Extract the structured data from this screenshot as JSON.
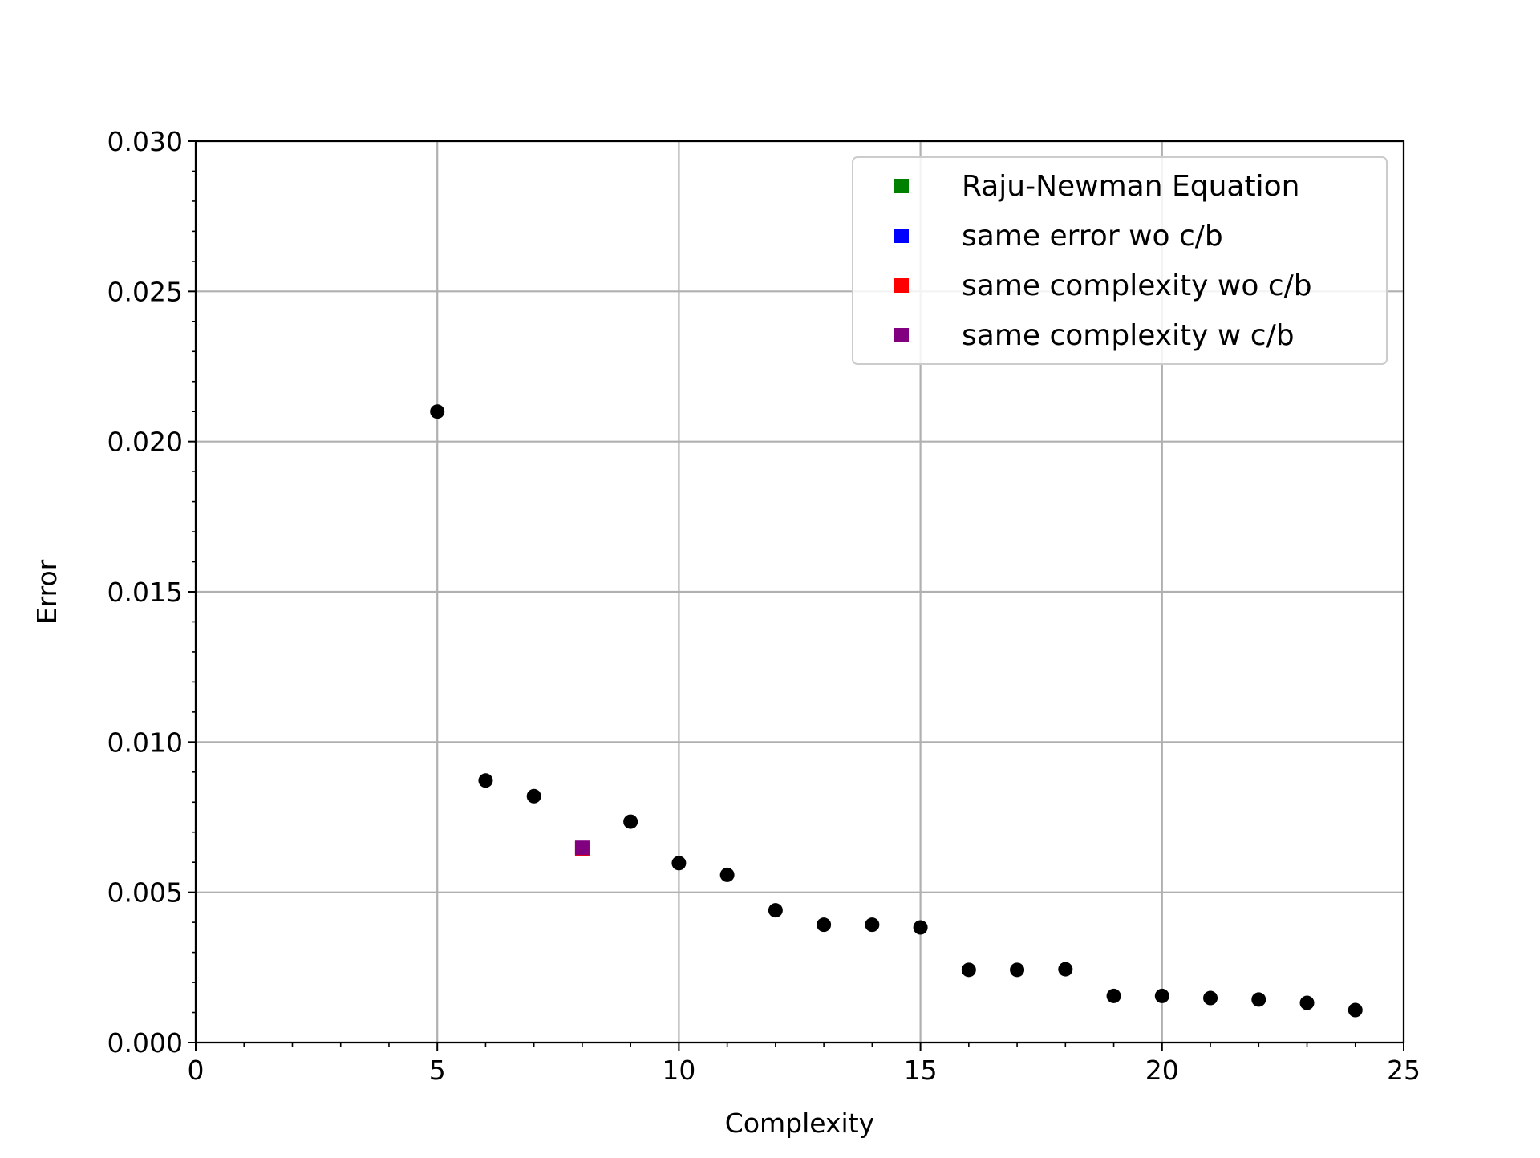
{
  "chart_data": {
    "type": "scatter",
    "title": "",
    "xlabel": "Complexity",
    "ylabel": "Error",
    "xlim": [
      0,
      25
    ],
    "ylim": [
      0,
      0.03
    ],
    "grid": true,
    "legend_position": "top-right",
    "x_ticks": [
      0,
      5,
      10,
      15,
      20,
      25
    ],
    "x_tick_labels": [
      "0",
      "5",
      "10",
      "15",
      "20",
      "25"
    ],
    "y_ticks": [
      0,
      0.005,
      0.01,
      0.015,
      0.02,
      0.025,
      0.03
    ],
    "y_tick_labels": [
      "0.000",
      "0.005",
      "0.010",
      "0.015",
      "0.020",
      "0.025",
      "0.030"
    ],
    "points": {
      "color": "#000000",
      "x": [
        5,
        6,
        7,
        9,
        10,
        11,
        12,
        13,
        14,
        15,
        16,
        17,
        18,
        19,
        20,
        21,
        22,
        23,
        24
      ],
      "y": [
        0.021,
        0.00872,
        0.0082,
        0.00735,
        0.00597,
        0.00558,
        0.0044,
        0.00392,
        0.00392,
        0.00383,
        0.00242,
        0.00242,
        0.00244,
        0.00155,
        0.00155,
        0.00148,
        0.00143,
        0.00132,
        0.00108
      ]
    },
    "series": [
      {
        "name": "Raju-Newman Equation",
        "color": "#008000",
        "marker": "square",
        "x": [],
        "y": []
      },
      {
        "name": "same error wo c/b",
        "color": "#0000ff",
        "marker": "square",
        "x": [],
        "y": []
      },
      {
        "name": "same complexity wo c/b",
        "color": "#ff0000",
        "marker": "square",
        "x": [
          8
        ],
        "y": [
          0.00645
        ]
      },
      {
        "name": "same complexity w c/b",
        "color": "#800080",
        "marker": "square",
        "x": [
          8
        ],
        "y": [
          0.00648
        ]
      }
    ]
  }
}
